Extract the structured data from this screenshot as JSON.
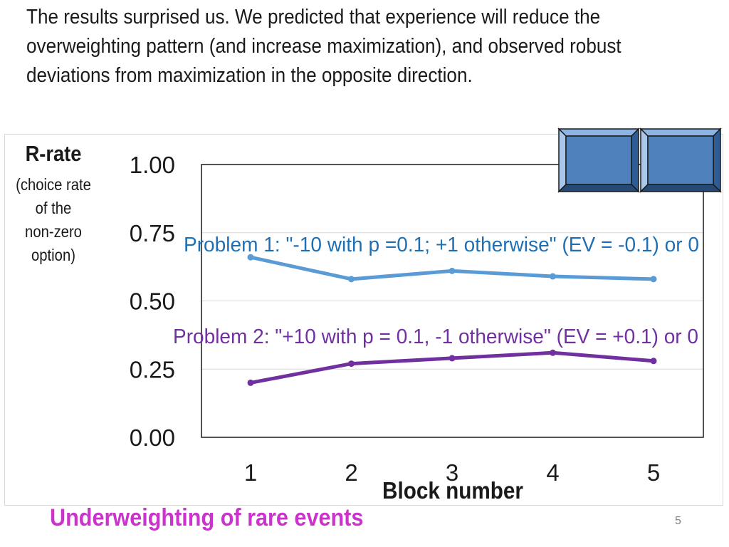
{
  "intro_text": "The results surprised us. We predicted that experience will reduce the overweighting pattern (and increase maximization), and observed robust deviations from maximization in the opposite direction.",
  "footer_title": "Underweighting of rare events",
  "page_number": "5",
  "colors": {
    "problem1": "#5b9bd5",
    "problem1_label": "#1f6fb5",
    "problem2": "#7030a0",
    "problem2_label": "#7030a0",
    "footer": "#cc33cc",
    "buttons": "#4f81bd"
  },
  "chart_data": {
    "type": "line",
    "ylabel": {
      "title": "R-rate",
      "subtitle_lines": [
        "(choice rate",
        "of the",
        "non-zero",
        "option)"
      ]
    },
    "xlabel": "Block number",
    "ylim": [
      0,
      1
    ],
    "yticks": [
      "0.00",
      "0.25",
      "0.50",
      "0.75",
      "1.00"
    ],
    "categories": [
      "1",
      "2",
      "3",
      "4",
      "5"
    ],
    "grid": true,
    "series": [
      {
        "name": "Problem 1: \"-10 with p =0.1; +1 otherwise\" (EV = -0.1) or 0",
        "values": [
          0.66,
          0.58,
          0.61,
          0.59,
          0.58
        ]
      },
      {
        "name": "Problem 2: \"+10 with p = 0.1, -1 otherwise\" (EV = +0.1) or 0",
        "values": [
          0.2,
          0.27,
          0.29,
          0.31,
          0.28
        ]
      }
    ]
  }
}
